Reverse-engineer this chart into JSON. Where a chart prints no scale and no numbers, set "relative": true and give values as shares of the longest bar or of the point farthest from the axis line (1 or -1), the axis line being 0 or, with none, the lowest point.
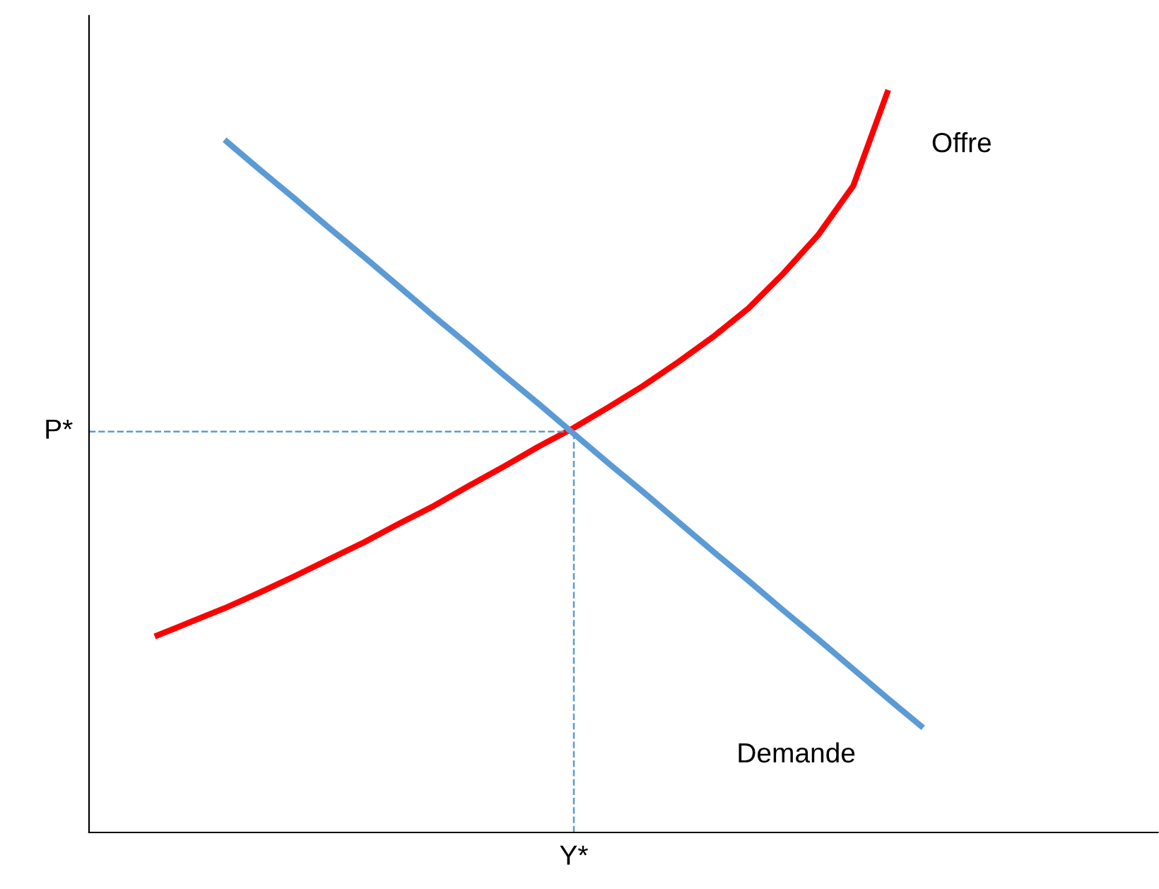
{
  "chart_data": {
    "type": "line",
    "relative": true,
    "marker": "none",
    "annotations": [
      "Y*"
    ],
    "categories": [
      null,
      null,
      null,
      null,
      null,
      null,
      null,
      null,
      null,
      null,
      null,
      null,
      null,
      null,
      null,
      null,
      null,
      null,
      null,
      null,
      null,
      null,
      null,
      null,
      null,
      null,
      null,
      null,
      null,
      null
    ],
    "series": [
      {
        "name": "Offre",
        "color": "#ff0000",
        "values": [
          null,
          0.264,
          0.283,
          0.302,
          0.323,
          0.345,
          0.368,
          0.391,
          0.416,
          0.44,
          0.467,
          0.493,
          0.52,
          0.545,
          0.573,
          0.602,
          0.634,
          0.668,
          0.706,
          0.753,
          0.805,
          0.871,
          1.0,
          null,
          null,
          null,
          null,
          null,
          null,
          null
        ]
      },
      {
        "name": "Demande",
        "color": "#5b9bd5",
        "values": [
          null,
          null,
          null,
          0.933,
          0.893,
          0.854,
          0.814,
          0.775,
          0.735,
          0.695,
          0.656,
          0.616,
          0.577,
          0.537,
          0.497,
          0.458,
          0.418,
          0.378,
          0.339,
          0.299,
          0.26,
          0.22,
          0.18,
          0.141,
          null,
          null,
          null,
          null,
          null,
          null
        ]
      }
    ],
    "ref_lines": [
      {
        "axis": "y",
        "value": 0.54,
        "label": "P*",
        "color": "#5b9bd5",
        "line_style": "dashed"
      }
    ]
  }
}
